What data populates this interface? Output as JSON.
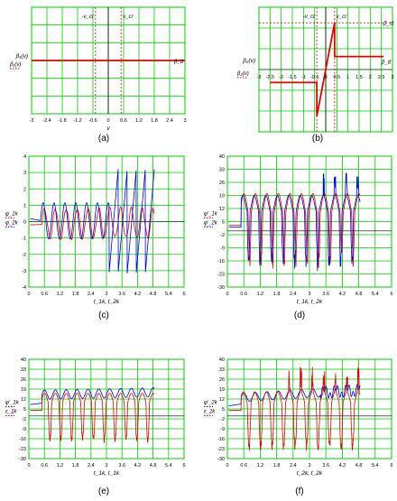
{
  "colors": {
    "grid": "#00cc00",
    "red": "#e00000",
    "blue": "#0000dd",
    "axis": "#000000"
  },
  "panel_labels": [
    "(a)",
    "(b)",
    "(c)",
    "(d)",
    "(e)",
    "(f)"
  ],
  "chart_data": [
    {
      "id": "a",
      "type": "line",
      "grid": true,
      "xlim": [
        -3,
        3
      ],
      "ylim": [
        -1,
        1
      ],
      "xticks": [
        -3,
        -2.4,
        -1.8,
        -1.2,
        -0.6,
        0,
        0.6,
        1.2,
        1.8,
        2.4,
        3
      ],
      "xtick_labels": [
        "-3",
        "-2.4",
        "-1.8",
        "-1.2",
        "-0.6",
        "0",
        "0.6",
        "1.2",
        "1.8",
        "2.4",
        "3"
      ],
      "xlabel": "ν",
      "ylabel": "β₁(ν)",
      "series": [
        {
          "name": "β₁(ν)",
          "color": "red",
          "x": [
            -3,
            3
          ],
          "y": [
            0,
            0
          ]
        }
      ],
      "vlines": [
        {
          "x": -0.5,
          "label": "-ν_cr"
        },
        {
          "x": 0.5,
          "label": "ν_cr"
        }
      ],
      "annotations": [
        {
          "text": "β_d"
        }
      ]
    },
    {
      "id": "b",
      "type": "line",
      "grid": true,
      "xlim": [
        -3,
        3
      ],
      "ylim": [
        -1.2,
        1.2
      ],
      "xticks": [
        -3,
        -2.5,
        -2,
        -1.5,
        -1,
        -0.5,
        0,
        0.5,
        1,
        1.5,
        2,
        2.5,
        3
      ],
      "xtick_labels": [
        "-3",
        "-2.5",
        "-2",
        "-1.5",
        "-1",
        "-0.5",
        "0",
        "0.5",
        "1",
        "1.5",
        "2",
        "2.5",
        "3"
      ],
      "ylabel": "β₂(ν)",
      "series": [
        {
          "name": "β₂(ν)",
          "color": "red",
          "x": [
            -2.5,
            -0.4,
            -0.4,
            0.4,
            0.4,
            2.6
          ],
          "y": [
            -0.25,
            -0.25,
            -0.9,
            0.9,
            0.25,
            0.25
          ]
        }
      ],
      "vlines": [
        {
          "x": -0.4,
          "label": "-ν_cr"
        },
        {
          "x": 0.4,
          "label": "ν_cr"
        }
      ],
      "hlines": [
        {
          "y": 0.9,
          "label": "β_st"
        }
      ],
      "annotations": [
        {
          "text": "β_d"
        }
      ]
    },
    {
      "id": "c",
      "type": "line",
      "grid": true,
      "xlim": [
        0,
        6
      ],
      "ylim": [
        -4,
        4
      ],
      "xticks": [
        0,
        0.6,
        1.2,
        1.8,
        2.4,
        3,
        3.6,
        4.2,
        4.8,
        5.4,
        6
      ],
      "xtick_labels": [
        "0",
        "0.6",
        "1.2",
        "1.8",
        "2.4",
        "3",
        "3.6",
        "4.2",
        "4.8",
        "5.4",
        "6"
      ],
      "yticks": [
        -4,
        -3,
        -2,
        -1,
        0,
        1,
        2,
        3,
        4
      ],
      "ytick_labels": [
        "-4",
        "-3",
        "-2",
        "-1",
        "0",
        "1",
        "2",
        "3",
        "4"
      ],
      "xlabel": "t_1k, t_2k",
      "series": [
        {
          "name": "φ_1k",
          "color": "red",
          "kind": "osc_small",
          "seed": 1
        },
        {
          "name": "φ_2k",
          "color": "blue",
          "kind": "osc_diverge",
          "seed": 2
        }
      ]
    },
    {
      "id": "d",
      "type": "line",
      "grid": true,
      "xlim": [
        0,
        6
      ],
      "ylim": [
        -30,
        40
      ],
      "xticks": [
        0,
        0.6,
        1.2,
        1.8,
        2.4,
        3,
        3.6,
        4.2,
        4.8,
        5.4,
        6
      ],
      "xtick_labels": [
        "0",
        "0.6",
        "1.2",
        "1.8",
        "2.4",
        "3",
        "3.6",
        "4.2",
        "4.8",
        "5.4",
        "6"
      ],
      "yticks": [
        -30,
        -23,
        -16,
        -9,
        -2,
        5,
        12,
        19,
        26,
        33,
        40
      ],
      "ytick_labels": [
        "-30",
        "-23",
        "-16",
        "-9",
        "-2",
        "5",
        "12",
        "19",
        "26",
        "33",
        "40"
      ],
      "xlabel": "t_1k, t_2k",
      "series": [
        {
          "name": "φ'_1k",
          "color": "red",
          "kind": "spike_down",
          "seed": 3
        },
        {
          "name": "φ'_2k",
          "color": "blue",
          "kind": "noisy_both",
          "seed": 4
        }
      ]
    },
    {
      "id": "e",
      "type": "line",
      "grid": true,
      "xlim": [
        0,
        6
      ],
      "ylim": [
        -30,
        40
      ],
      "xticks": [
        0,
        0.6,
        1.2,
        1.8,
        2.4,
        3,
        3.6,
        4.2,
        4.8,
        5.4,
        6
      ],
      "xtick_labels": [
        "0",
        "0.6",
        "1.2",
        "1.8",
        "2.4",
        "3",
        "3.6",
        "4.2",
        "4.8",
        "5.4",
        "6"
      ],
      "yticks": [
        -30,
        -23,
        -16,
        -9,
        -2,
        5,
        12,
        19,
        26,
        33,
        40
      ],
      "ytick_labels": [
        "-30",
        "-23",
        "-16",
        "-9",
        "-2",
        "5",
        "12",
        "19",
        "26",
        "33",
        "40"
      ],
      "xlabel": "t_1k, t_1k",
      "series": [
        {
          "name": "φ'_1k",
          "color": "blue",
          "kind": "smooth_upper",
          "seed": 5
        },
        {
          "name": "ε_1k",
          "color": "red",
          "kind": "spike_down_regular",
          "seed": 6
        }
      ]
    },
    {
      "id": "f",
      "type": "line",
      "grid": true,
      "xlim": [
        0,
        6
      ],
      "ylim": [
        -30,
        40
      ],
      "xticks": [
        0,
        0.6,
        1.2,
        1.8,
        2.4,
        3,
        3.6,
        4.2,
        4.8,
        5.4,
        6
      ],
      "xtick_labels": [
        "0",
        "0.6",
        "1.2",
        "1.8",
        "2.4",
        "3",
        "3.6",
        "4.2",
        "4.8",
        "5.4",
        "6"
      ],
      "yticks": [
        -30,
        -23,
        -16,
        -9,
        -2,
        5,
        12,
        19,
        26,
        33,
        40
      ],
      "ytick_labels": [
        "-30",
        "-23",
        "-16",
        "-9",
        "-2",
        "5",
        "12",
        "19",
        "26",
        "33",
        "40"
      ],
      "xlabel": "t_2k, t_2k",
      "series": [
        {
          "name": "φ'_2k",
          "color": "blue",
          "kind": "smooth_upper_late",
          "seed": 7
        },
        {
          "name": "ε_2k",
          "color": "red",
          "kind": "spike_both",
          "seed": 8
        }
      ]
    }
  ]
}
